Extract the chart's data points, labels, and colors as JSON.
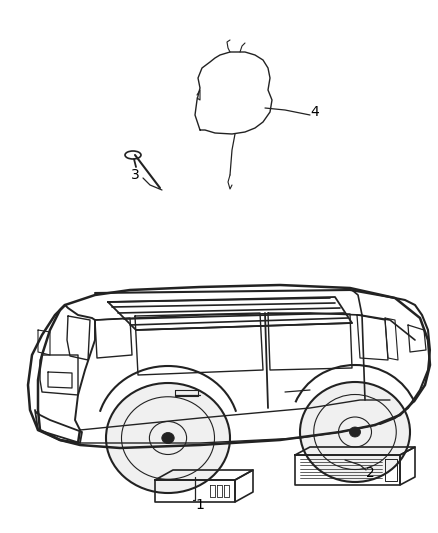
{
  "background_color": "#ffffff",
  "line_color": "#222222",
  "label_color": "#000000",
  "label_fontsize": 10,
  "fig_width": 4.38,
  "fig_height": 5.33,
  "dpi": 100
}
